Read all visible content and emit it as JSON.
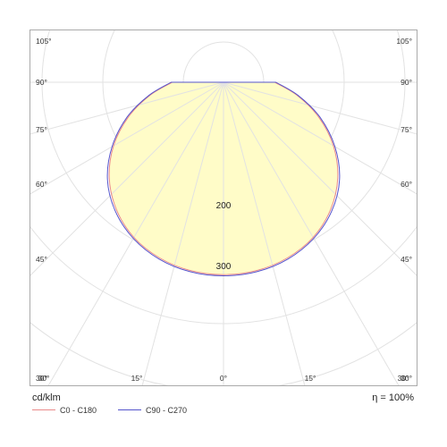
{
  "chart_data": {
    "type": "polar",
    "units_label": "cd/klm",
    "efficiency_label": "η = 100%",
    "angle_labels": {
      "left": [
        "105°",
        "90°",
        "75°",
        "60°",
        "45°",
        "30°"
      ],
      "right": [
        "105°",
        "90°",
        "75°",
        "60°",
        "45°",
        "30°"
      ],
      "bottom": [
        "30°",
        "15°",
        "0°",
        "15°",
        "30°"
      ]
    },
    "rings": [
      100,
      200,
      300,
      400
    ],
    "ring_labels": [
      "200",
      "300"
    ],
    "fill_color": "#fffcc8",
    "series": [
      {
        "name": "C0 - C180",
        "color": "#e98a8a",
        "angles_deg": [
          0,
          10,
          20,
          30,
          40,
          50,
          60,
          70,
          80,
          90
        ],
        "values": [
          320,
          318,
          311,
          298,
          277,
          248,
          211,
          168,
          124,
          85
        ]
      },
      {
        "name": "C90 - C270",
        "color": "#5555cc",
        "angles_deg": [
          0,
          10,
          20,
          30,
          40,
          50,
          60,
          70,
          80,
          90
        ],
        "values": [
          322,
          320,
          313,
          300,
          280,
          252,
          214,
          171,
          126,
          87
        ]
      }
    ]
  }
}
